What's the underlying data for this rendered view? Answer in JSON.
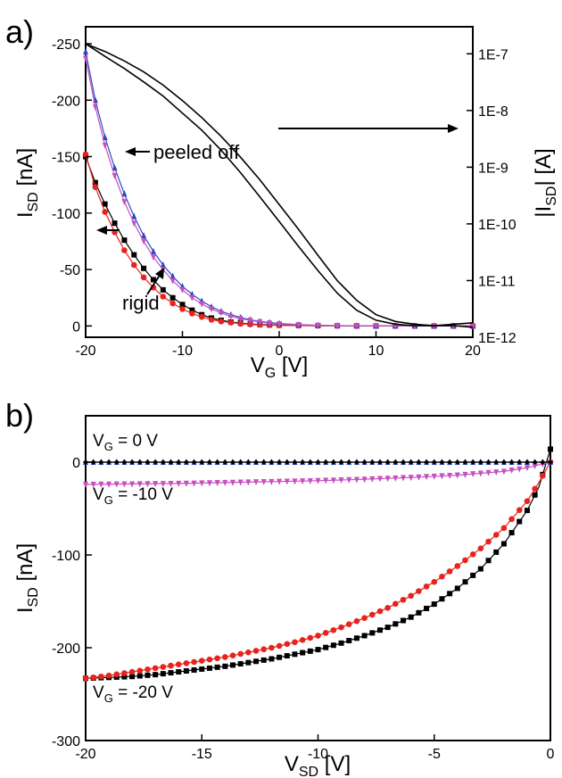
{
  "chart_data": [
    {
      "panel": "a)",
      "type": "line",
      "xlabel": {
        "main": "V",
        "sub": "G",
        "tail": " [V]"
      },
      "ylabel": {
        "main": "I",
        "sub": "SD",
        "tail": " [nA]"
      },
      "y2label": {
        "main": "|I",
        "sub": "SD",
        "tail": "| [A]"
      },
      "xlim": [
        -20,
        20
      ],
      "ylim": [
        -265,
        10
      ],
      "y2_scale": "log",
      "y2lim": [
        1e-12,
        3e-07
      ],
      "x_ticks": [
        "-20",
        "-10",
        "0",
        "10",
        "20"
      ],
      "y_ticks": [
        "-250",
        "-200",
        "-150",
        "-100",
        "-50",
        "0"
      ],
      "y2_ticks": [
        "1E-7",
        "1E-8",
        "1E-9",
        "1E-10",
        "1E-11",
        "1E-12"
      ],
      "annotations": [
        "peeled off",
        "rigid"
      ],
      "colors": {
        "black": "#000000",
        "red": "#e8221c",
        "blue": "#2a46c6",
        "magenta": "#c64fc0"
      },
      "series": [
        {
          "color": "black",
          "axis": "left",
          "marker": "square",
          "x": [
            -20,
            -19,
            -18,
            -17,
            -16,
            -15,
            -14,
            -13,
            -12,
            -11,
            -10,
            -9,
            -8,
            -7,
            -6,
            -5,
            -4,
            -3,
            -2,
            -1,
            0,
            2,
            4,
            6,
            8,
            10,
            12,
            14,
            16,
            18,
            20
          ],
          "y": [
            -150,
            -127,
            -108,
            -91,
            -76,
            -63,
            -51,
            -41,
            -32,
            -25,
            -19,
            -14,
            -10,
            -7,
            -5,
            -3.5,
            -2.5,
            -1.8,
            -1.3,
            -1,
            -0.8,
            -0.5,
            -0.3,
            -0.2,
            -0.1,
            0,
            0,
            0,
            0,
            0,
            0
          ]
        },
        {
          "color": "red",
          "axis": "left",
          "marker": "circle",
          "x": [
            -20,
            -19,
            -18,
            -17,
            -16,
            -15,
            -14,
            -13,
            -12,
            -11,
            -10,
            -9,
            -8,
            -7,
            -6,
            -5,
            -4,
            -3,
            -2,
            -1,
            0,
            2,
            4,
            6,
            8,
            10,
            12,
            14,
            16,
            18,
            20
          ],
          "y": [
            -152,
            -123,
            -101,
            -83,
            -67,
            -54,
            -43,
            -34,
            -26,
            -20,
            -15,
            -11,
            -8,
            -5.5,
            -4,
            -3,
            -2,
            -1.4,
            -1,
            -0.7,
            -0.5,
            -0.3,
            -0.2,
            -0.1,
            0,
            0,
            0,
            0,
            0,
            0,
            0
          ]
        },
        {
          "color": "blue",
          "axis": "left",
          "marker": "triangle",
          "x": [
            -20,
            -19,
            -18,
            -17,
            -16,
            -15,
            -14,
            -13,
            -12,
            -11,
            -10,
            -9,
            -8,
            -7,
            -6,
            -5,
            -4,
            -3,
            -2,
            -1,
            0,
            2,
            4,
            6,
            8,
            10,
            12,
            14,
            16,
            18,
            20
          ],
          "y": [
            -243,
            -200,
            -167,
            -140,
            -117,
            -97,
            -80,
            -66,
            -54,
            -44,
            -35,
            -28,
            -22,
            -17,
            -13,
            -10,
            -7.5,
            -5.5,
            -4,
            -3,
            -2.2,
            -1.2,
            -0.6,
            -0.3,
            -0.1,
            0,
            0,
            0,
            0,
            0,
            0
          ]
        },
        {
          "color": "magenta",
          "axis": "left",
          "marker": "triangle-down",
          "x": [
            -20,
            -19,
            -18,
            -17,
            -16,
            -15,
            -14,
            -13,
            -12,
            -11,
            -10,
            -9,
            -8,
            -7,
            -6,
            -5,
            -4,
            -3,
            -2,
            -1,
            0,
            2,
            4,
            6,
            8,
            10,
            12,
            14,
            16,
            18,
            20
          ],
          "y": [
            -237,
            -194,
            -160,
            -133,
            -110,
            -91,
            -75,
            -61,
            -50,
            -40,
            -32,
            -25,
            -19.5,
            -15,
            -11.5,
            -8.5,
            -6.5,
            -5,
            -3.5,
            -2.5,
            -1.8,
            -1,
            -0.5,
            -0.2,
            -0.1,
            0,
            0,
            0,
            0,
            0,
            0
          ]
        },
        {
          "color": "black",
          "axis": "right",
          "marker": "none",
          "x": [
            -20,
            -18,
            -16,
            -14,
            -12,
            -10,
            -8,
            -6,
            -4,
            -2,
            0,
            2,
            4,
            6,
            8,
            10,
            12,
            14,
            16,
            18,
            20
          ],
          "y": [
            1.5e-07,
            9e-08,
            5.5e-08,
            3.2e-08,
            1.8e-08,
            9e-09,
            4.5e-09,
            2e-09,
            8e-10,
            3e-10,
            1.1e-10,
            4e-11,
            1.5e-11,
            6e-12,
            3e-12,
            2e-12,
            1.7e-12,
            1.6e-12,
            1.6e-12,
            1.7e-12,
            1.8e-12
          ]
        },
        {
          "color": "black",
          "axis": "right",
          "marker": "none",
          "x": [
            -20,
            -18,
            -16,
            -14,
            -12,
            -10,
            -8,
            -6,
            -4,
            -2,
            0,
            2,
            4,
            6,
            8,
            10,
            12,
            14,
            16,
            18,
            20
          ],
          "y": [
            1.5e-07,
            1.1e-07,
            7.5e-08,
            4.8e-08,
            2.8e-08,
            1.5e-08,
            7.5e-09,
            3.5e-09,
            1.5e-09,
            6e-10,
            2.2e-10,
            8e-11,
            2.8e-11,
            1e-11,
            4.5e-12,
            2.5e-12,
            1.9e-12,
            1.7e-12,
            1.6e-12,
            1.6e-12,
            1.5e-12
          ]
        }
      ]
    },
    {
      "panel": "b)",
      "type": "line",
      "xlabel": {
        "main": "V",
        "sub": "SD",
        "tail": " [V]"
      },
      "ylabel": {
        "main": "I",
        "sub": "SD",
        "tail": " [nA]"
      },
      "xlim": [
        -20,
        0
      ],
      "ylim": [
        -300,
        50
      ],
      "x_ticks": [
        "-20",
        "-15",
        "-10",
        "-5",
        "0"
      ],
      "y_ticks": [
        "0",
        "-100",
        "-200",
        "-300"
      ],
      "annotations": [
        {
          "main": "V",
          "sub": "G",
          "tail": " = 0 V"
        },
        {
          "main": "V",
          "sub": "G",
          "tail": " = -10 V"
        },
        {
          "main": "V",
          "sub": "G",
          "tail": " = -20 V"
        }
      ],
      "series": [
        {
          "color": "black",
          "marker": "square",
          "x": [
            -20,
            -19,
            -18,
            -17,
            -16,
            -15,
            -14,
            -13,
            -12,
            -11,
            -10,
            -9,
            -8,
            -7,
            -6,
            -5,
            -4,
            -3,
            -2,
            -1,
            -0.5,
            0
          ],
          "y": [
            -233,
            -232,
            -231,
            -229,
            -226,
            -223,
            -220,
            -216,
            -212,
            -207,
            -202,
            -195,
            -187,
            -178,
            -167,
            -153,
            -136,
            -115,
            -88,
            -52,
            -27,
            14
          ]
        },
        {
          "color": "red",
          "marker": "circle",
          "x": [
            -20,
            -19,
            -18,
            -17,
            -16,
            -15,
            -14,
            -13,
            -12,
            -11,
            -10,
            -9,
            -8,
            -7,
            -6,
            -5,
            -4,
            -3,
            -2,
            -1,
            -0.5,
            0
          ],
          "y": [
            -233,
            -230,
            -226,
            -222,
            -218,
            -214,
            -210,
            -205,
            -200,
            -194,
            -187,
            -178,
            -168,
            -157,
            -144,
            -129,
            -112,
            -93,
            -71,
            -42,
            -22,
            0
          ]
        },
        {
          "color": "blue",
          "marker": "triangle",
          "x": [
            -20,
            -16,
            -12,
            -8,
            -4,
            -2,
            -1,
            0
          ],
          "y": [
            0,
            0,
            0,
            0,
            0,
            0,
            0,
            0
          ]
        },
        {
          "color": "magenta",
          "marker": "triangle-down",
          "x": [
            -20,
            -18,
            -16,
            -14,
            -12,
            -10,
            -8,
            -6,
            -4,
            -2,
            -1,
            -0.5,
            0
          ],
          "y": [
            -24,
            -23.5,
            -23,
            -22,
            -21,
            -20,
            -18.5,
            -16.5,
            -14,
            -10,
            -6,
            -3,
            0
          ]
        },
        {
          "color": "black",
          "marker": "diamond",
          "x": [
            -20,
            -15,
            -10,
            -5,
            0
          ],
          "y": [
            0,
            0,
            0,
            0,
            0
          ]
        }
      ]
    }
  ]
}
